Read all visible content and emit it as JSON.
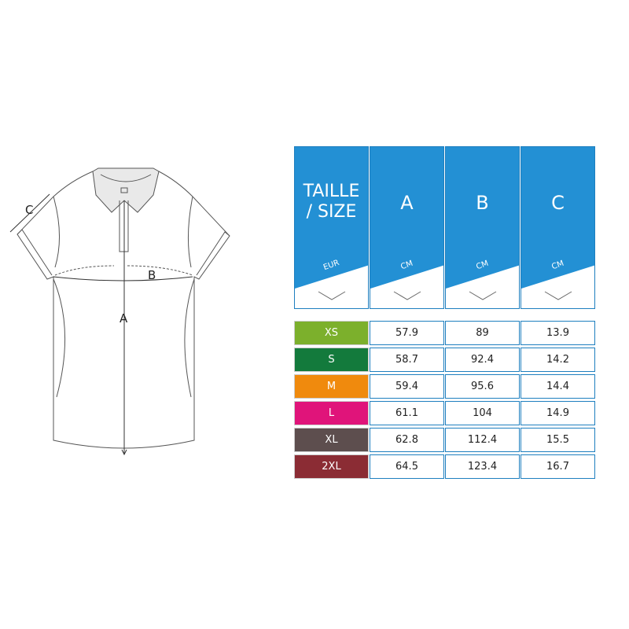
{
  "diagram": {
    "labels": {
      "a": "A",
      "b": "B",
      "c": "C"
    }
  },
  "table": {
    "header_color": "#2390d4",
    "columns": [
      {
        "title_line1": "TAILLE",
        "title_line2": "/ SIZE",
        "unit": "EUR"
      },
      {
        "title_line1": "A",
        "title_line2": "",
        "unit": "CM"
      },
      {
        "title_line1": "B",
        "title_line2": "",
        "unit": "CM"
      },
      {
        "title_line1": "C",
        "title_line2": "",
        "unit": "CM"
      }
    ],
    "rows": [
      {
        "size": "XS",
        "color": "#7cb02c",
        "a": "57.9",
        "b": "89",
        "c": "13.9"
      },
      {
        "size": "S",
        "color": "#137a3c",
        "a": "58.7",
        "b": "92.4",
        "c": "14.2"
      },
      {
        "size": "M",
        "color": "#f08a0d",
        "a": "59.4",
        "b": "95.6",
        "c": "14.4"
      },
      {
        "size": "L",
        "color": "#e0147a",
        "a": "61.1",
        "b": "104",
        "c": "14.9"
      },
      {
        "size": "XL",
        "color": "#5d4e4e",
        "a": "62.8",
        "b": "112.4",
        "c": "15.5"
      },
      {
        "size": "2XL",
        "color": "#8b2c34",
        "a": "64.5",
        "b": "123.4",
        "c": "16.7"
      }
    ]
  }
}
